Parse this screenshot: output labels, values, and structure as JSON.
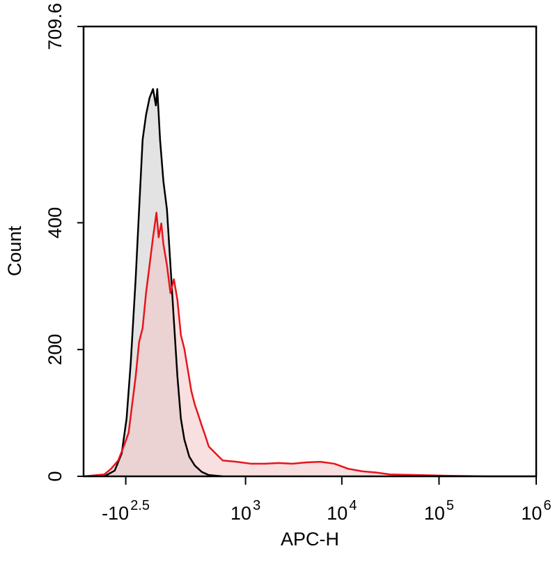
{
  "chart_data": {
    "type": "histogram-overlay",
    "x_label": "APC-H",
    "y_label": "Count",
    "xscale": "logicle",
    "xlim": [
      -1000,
      1000000
    ],
    "xticks": [
      {
        "value": -316.2,
        "label": "-10",
        "superscript": "2.5"
      },
      {
        "value": 1000,
        "label": "10",
        "superscript": "3"
      },
      {
        "value": 10000,
        "label": "10",
        "superscript": "4"
      },
      {
        "value": 100000,
        "label": "10",
        "superscript": "5"
      },
      {
        "value": 1000000,
        "label": "10",
        "superscript": "6"
      }
    ],
    "ylim": [
      0,
      709.6
    ],
    "yticks": [
      0,
      200,
      400,
      709.6
    ],
    "series": [
      {
        "color": "#000000",
        "fill_color": "#d9d9d9",
        "x": [
          -590,
          -443,
          -360,
          -308,
          -267,
          -222,
          -192,
          -163,
          -136,
          -109,
          -83,
          -62,
          -52,
          -32,
          -8,
          17,
          42,
          67,
          93,
          119,
          146,
          186,
          234,
          300,
          375,
          557
        ],
        "values": [
          0,
          9,
          36,
          91,
          179,
          311,
          421,
          531,
          570,
          597,
          611,
          585,
          611,
          531,
          465,
          421,
          333,
          245,
          157,
          91,
          58,
          31,
          17,
          7,
          2,
          0
        ]
      },
      {
        "color": "#e8141b",
        "fill_color": "#f2c4c6",
        "x": [
          -1000,
          -590,
          -489,
          -400,
          -338,
          -287,
          -254,
          -222,
          -192,
          -163,
          -136,
          -109,
          -83,
          -58,
          -42,
          -23,
          -8,
          17,
          42,
          67,
          93,
          119,
          146,
          174,
          203,
          234,
          266,
          300,
          337,
          375,
          459,
          557,
          800,
          1132,
          1616,
          2217,
          3093,
          4305,
          5994,
          8340,
          11600,
          16150,
          22470,
          31250,
          60450,
          117000,
          315000,
          1000000
        ],
        "values": [
          0,
          3,
          12,
          25,
          47,
          69,
          113,
          157,
          212,
          234,
          289,
          333,
          377,
          416,
          377,
          399,
          366,
          333,
          289,
          311,
          278,
          223,
          201,
          168,
          135,
          113,
          97,
          80,
          64,
          47,
          36,
          25,
          23,
          20,
          20,
          21,
          20,
          22,
          23,
          20,
          12,
          8,
          6,
          3,
          2,
          1,
          0,
          0
        ]
      }
    ]
  }
}
